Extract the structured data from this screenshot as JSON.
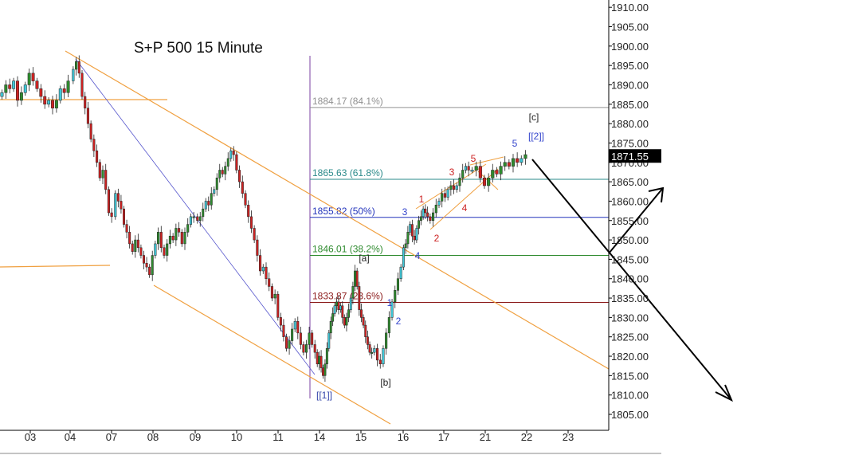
{
  "chart_data": {
    "type": "candlestick",
    "title": "S+P 500 15 Minute",
    "xlabel": "",
    "ylabel": "",
    "ylim": [
      1801,
      1913
    ],
    "y_ticks": [
      "1805.00",
      "1810.00",
      "1815.00",
      "1820.00",
      "1825.00",
      "1830.00",
      "1835.00",
      "1840.00",
      "1845.00",
      "1850.00",
      "1855.00",
      "1860.00",
      "1865.00",
      "1870.00",
      "1875.00",
      "1880.00",
      "1885.00",
      "1890.00",
      "1895.00",
      "1900.00",
      "1905.00",
      "1910.00"
    ],
    "x_ticks": [
      "03",
      "04",
      "07",
      "08",
      "09",
      "10",
      "11",
      "14",
      "15",
      "16",
      "17",
      "21",
      "22",
      "23"
    ],
    "last_price": "1871.55",
    "colors": {
      "up": "#2e8b2e",
      "down": "#cc2222",
      "up_alt": "#40c8d8",
      "channel": "#f0a040",
      "axis": "#000000"
    },
    "fib_levels": [
      {
        "label": "1884.17 (84.1%)",
        "value": 1884.17,
        "color": "#909090"
      },
      {
        "label": "1865.63 (61.8%)",
        "value": 1865.63,
        "color": "#2a8a8a"
      },
      {
        "label": "1855.82 (50%)",
        "value": 1855.82,
        "color": "#2233bb"
      },
      {
        "label": "1846.01 (38.2%)",
        "value": 1846.01,
        "color": "#2e8b2e"
      },
      {
        "label": "1833.87 (23.6%)",
        "value": 1833.87,
        "color": "#8b1a1a"
      }
    ],
    "wave_labels": [
      {
        "text": "[[1]]",
        "color": "#3344aa"
      },
      {
        "text": "[a]",
        "color": "#222222"
      },
      {
        "text": "[b]",
        "color": "#222222"
      },
      {
        "text": "[c]",
        "color": "#222222"
      },
      {
        "text": "[[2]]",
        "color": "#3344cc"
      },
      {
        "text": "1",
        "color": "#cc2222"
      },
      {
        "text": "2",
        "color": "#cc2222"
      },
      {
        "text": "3",
        "color": "#cc2222"
      },
      {
        "text": "4",
        "color": "#cc2222"
      },
      {
        "text": "5",
        "color": "#cc2222"
      },
      {
        "text": "1",
        "color": "#3344cc"
      },
      {
        "text": "2",
        "color": "#3344cc"
      },
      {
        "text": "3",
        "color": "#3344cc"
      },
      {
        "text": "4",
        "color": "#3344cc"
      },
      {
        "text": "5",
        "color": "#3344cc"
      }
    ],
    "series": [
      {
        "day": "03",
        "close": [
          1888,
          1890,
          1889,
          1891,
          1886,
          1888,
          1890,
          1893,
          1891,
          1889,
          1887,
          1885,
          1886,
          1884,
          1886,
          1889,
          1888,
          1891
        ]
      },
      {
        "day": "04",
        "close": [
          1894,
          1896,
          1893,
          1887,
          1884,
          1880,
          1876,
          1873,
          1870,
          1866,
          1868,
          1863,
          1857,
          1856
        ]
      },
      {
        "day": "07",
        "close": [
          1862,
          1860,
          1858,
          1854,
          1852,
          1849,
          1847,
          1850,
          1848,
          1846,
          1844,
          1843,
          1841,
          1846
        ]
      },
      {
        "day": "08",
        "close": [
          1849,
          1852,
          1848,
          1846,
          1849,
          1851,
          1850,
          1853,
          1852,
          1849,
          1852,
          1854,
          1856,
          1856
        ]
      },
      {
        "day": "09",
        "close": [
          1855,
          1856,
          1858,
          1860,
          1859,
          1862,
          1863,
          1866,
          1868,
          1867,
          1869,
          1871,
          1873,
          1872
        ]
      },
      {
        "day": "10",
        "close": [
          1868,
          1865,
          1862,
          1859,
          1856,
          1853,
          1850,
          1846,
          1842,
          1843,
          1840,
          1838,
          1835,
          1836
        ]
      },
      {
        "day": "11",
        "close": [
          1830,
          1828,
          1825,
          1822,
          1824,
          1827,
          1829,
          1826,
          1823,
          1821,
          1823,
          1826,
          1823,
          1821
        ]
      },
      {
        "day": "14",
        "close": [
          1818,
          1820,
          1817,
          1815,
          1818,
          1822,
          1826,
          1829,
          1831,
          1833,
          1834,
          1832,
          1833,
          1830
        ]
      },
      {
        "day": "15",
        "close": [
          1828,
          1830,
          1832,
          1835,
          1838,
          1842,
          1838,
          1832,
          1830,
          1828,
          1825,
          1823,
          1821,
          1821
        ]
      },
      {
        "day": "15b",
        "close": [
          1822,
          1819,
          1818,
          1822,
          1826,
          1830,
          1834,
          1837,
          1840,
          1843
        ]
      },
      {
        "day": "16",
        "close": [
          1848,
          1849,
          1852,
          1854,
          1851,
          1850,
          1853,
          1855,
          1856,
          1858,
          1857,
          1856
        ]
      },
      {
        "day": "17",
        "close": [
          1855,
          1857,
          1859,
          1860,
          1862,
          1861,
          1863,
          1864,
          1863,
          1864,
          1866,
          1868,
          1869,
          1868
        ]
      },
      {
        "day": "21",
        "close": [
          1868,
          1869,
          1866,
          1864,
          1866,
          1868,
          1867,
          1869,
          1870,
          1869,
          1871,
          1870,
          1871,
          1872
        ]
      }
    ]
  }
}
